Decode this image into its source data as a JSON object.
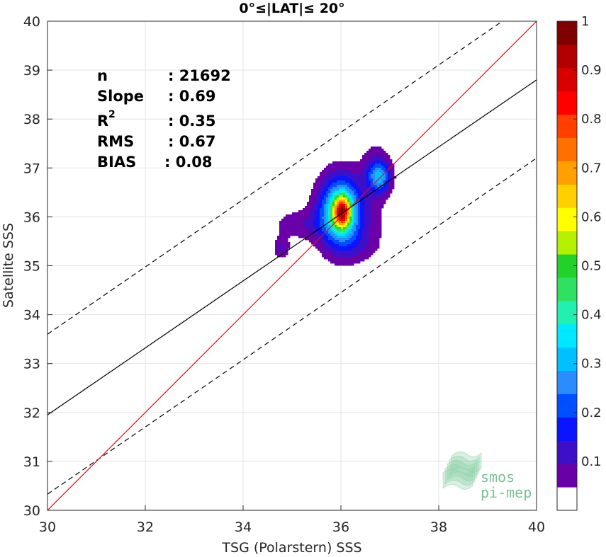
{
  "chart_data": {
    "type": "heatmap",
    "title": "0°≤|LAT|≤ 20°",
    "xlabel": "TSG (Polarstern) SSS",
    "ylabel": "Satellite SSS",
    "xlim": [
      30,
      40
    ],
    "ylim": [
      30,
      40
    ],
    "xticks": [
      "30",
      "32",
      "34",
      "36",
      "38",
      "40"
    ],
    "yticks": [
      "30",
      "31",
      "32",
      "33",
      "34",
      "35",
      "36",
      "37",
      "38",
      "39",
      "40"
    ],
    "grid": true,
    "stats": [
      {
        "label": "n",
        "value": ": 21692"
      },
      {
        "label": "Slope",
        "value": ": 0.69"
      },
      {
        "label": "R",
        "sup": "2",
        "value": ": 0.35"
      },
      {
        "label": "RMS",
        "value": ": 0.67"
      },
      {
        "label": "BIAS",
        "value": ": 0.08"
      }
    ],
    "lines": {
      "identity": {
        "color": "#ff0000",
        "points": [
          [
            30,
            30
          ],
          [
            40,
            40
          ]
        ]
      },
      "fit": {
        "color": "#000000",
        "points": [
          [
            30,
            31.95
          ],
          [
            40,
            38.8
          ]
        ]
      },
      "fit_plus": {
        "style": "dashed",
        "points": [
          [
            30,
            33.6
          ],
          [
            39.3,
            40
          ]
        ]
      },
      "fit_minus": {
        "style": "dashed",
        "points": [
          [
            30,
            30.33
          ],
          [
            40,
            37.2
          ]
        ]
      }
    },
    "density_peaks": [
      {
        "x": 36.02,
        "y": 36.1,
        "value": 0.92
      },
      {
        "x": 36.78,
        "y": 36.82,
        "value": 0.42
      },
      {
        "x": 35.15,
        "y": 35.85,
        "value": 0.12
      },
      {
        "x": 34.75,
        "y": 35.35,
        "value": 0.12
      }
    ],
    "colorbar": {
      "range": [
        0,
        1
      ],
      "ticks": [
        "0.1",
        "0.2",
        "0.3",
        "0.4",
        "0.5",
        "0.6",
        "0.7",
        "0.8",
        "0.9",
        "1"
      ],
      "colors": [
        "#ffffff",
        "#6a00a8",
        "#3d0fc8",
        "#0a14ff",
        "#0050ff",
        "#2a8cff",
        "#00c0ff",
        "#00e8ff",
        "#20f0b0",
        "#30e060",
        "#22d22a",
        "#b4f000",
        "#ffff00",
        "#ffd000",
        "#ffa000",
        "#ff7000",
        "#ff4000",
        "#ff0000",
        "#d80000",
        "#b00000",
        "#800000"
      ]
    },
    "logo": [
      "smos",
      "pi-mep"
    ]
  }
}
